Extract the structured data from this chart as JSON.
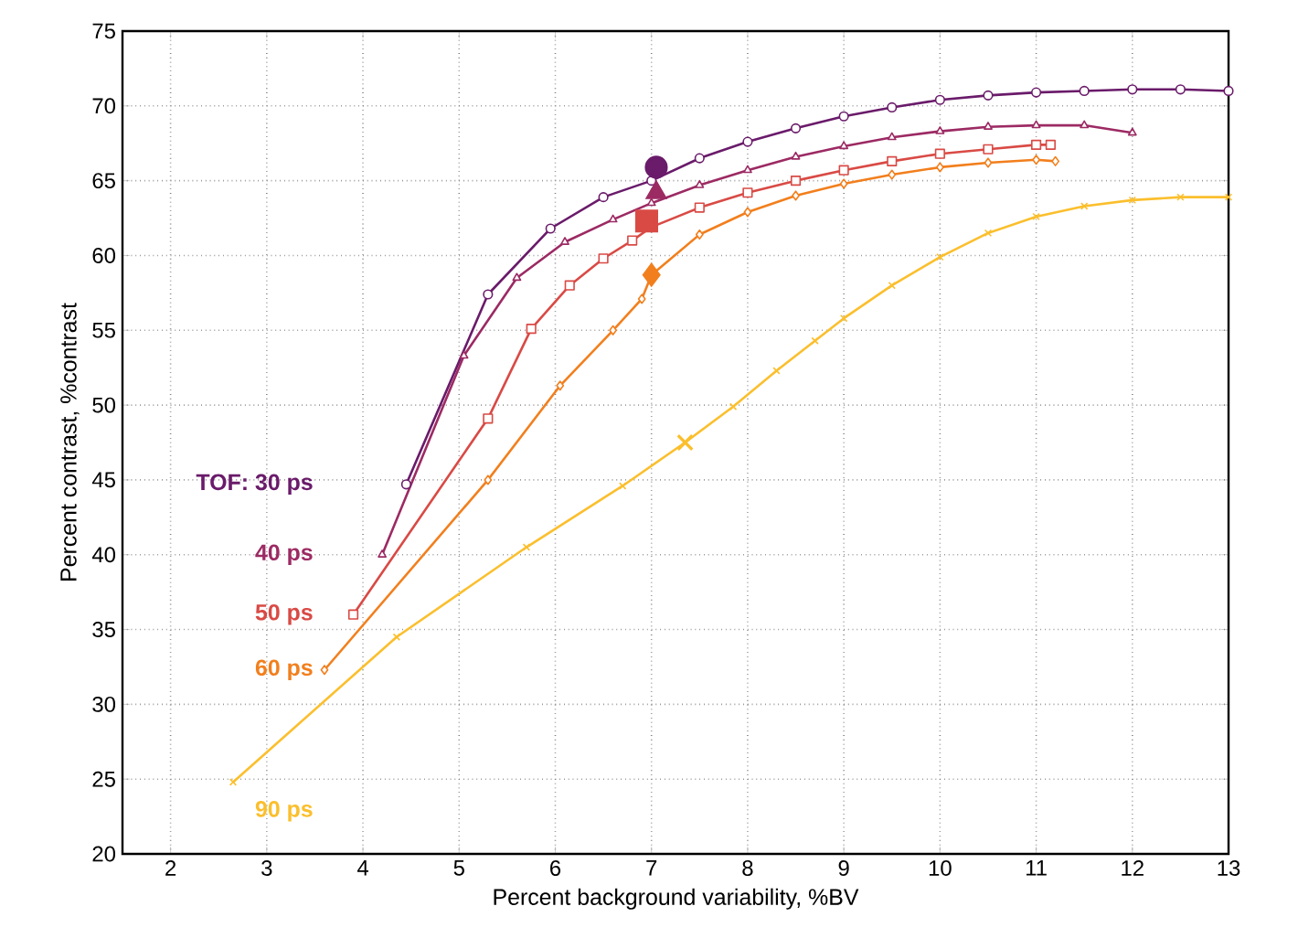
{
  "chart_data": {
    "type": "line",
    "xlabel": "Percent background variability, %BV",
    "ylabel": "Percent contrast, %contrast",
    "xlim": [
      1.5,
      13
    ],
    "xticks": [
      2,
      3,
      4,
      5,
      6,
      7,
      8,
      9,
      10,
      11,
      12,
      13
    ],
    "ylim": [
      20,
      75
    ],
    "yticks": [
      20,
      25,
      30,
      35,
      40,
      45,
      50,
      55,
      60,
      65,
      70,
      75
    ],
    "grid": true,
    "line_style": "solid",
    "series": [
      {
        "name": "TOF: 30 ps",
        "color": "#6a1b6a",
        "marker": "circle",
        "x": [
          4.45,
          5.3,
          5.95,
          6.5,
          7.0,
          7.5,
          8,
          8.5,
          9,
          9.5,
          10,
          10.5,
          11,
          11.5,
          12,
          12.5,
          13
        ],
        "values": [
          44.7,
          57.4,
          61.8,
          63.9,
          65.0,
          66.5,
          67.6,
          68.5,
          69.3,
          69.9,
          70.4,
          70.7,
          70.9,
          71.0,
          71.1,
          71.1,
          71.0
        ]
      },
      {
        "name": "40 ps",
        "color": "#9c2a63",
        "marker": "triangle",
        "x": [
          4.2,
          5.05,
          5.6,
          6.1,
          6.6,
          7.0,
          7.5,
          8,
          8.5,
          9,
          9.5,
          10,
          10.5,
          11,
          11.5,
          12
        ],
        "values": [
          40,
          53.3,
          58.5,
          60.9,
          62.4,
          63.5,
          64.7,
          65.7,
          66.6,
          67.3,
          67.9,
          68.3,
          68.6,
          68.7,
          68.7,
          68.2
        ]
      },
      {
        "name": "50 ps",
        "color": "#d94a45",
        "marker": "square",
        "x": [
          3.9,
          5.3,
          5.75,
          6.15,
          6.5,
          6.8,
          7.0,
          7.5,
          8,
          8.5,
          9,
          9.5,
          10,
          10.5,
          11,
          11.15
        ],
        "values": [
          36,
          49.1,
          55.1,
          58.0,
          59.8,
          61.0,
          61.9,
          63.2,
          64.2,
          65.0,
          65.7,
          66.3,
          66.8,
          67.1,
          67.4,
          67.4
        ]
      },
      {
        "name": "60 ps",
        "color": "#f27f1d",
        "marker": "diamond",
        "x": [
          3.6,
          5.3,
          6.05,
          6.6,
          6.9,
          7.0,
          7.5,
          8,
          8.5,
          9,
          9.5,
          10,
          10.5,
          11,
          11.2
        ],
        "values": [
          32.3,
          45,
          51.3,
          55,
          57.1,
          58.7,
          61.4,
          62.9,
          64.0,
          64.8,
          65.4,
          65.9,
          66.2,
          66.4,
          66.3
        ]
      },
      {
        "name": "90 ps",
        "color": "#fbbf2d",
        "marker": "cross",
        "x": [
          2.65,
          4.35,
          5.7,
          6.7,
          7.35,
          7.85,
          8.3,
          8.7,
          9,
          9.5,
          10,
          10.5,
          11,
          11.5,
          12,
          12.5,
          13
        ],
        "values": [
          24.8,
          34.5,
          40.5,
          44.6,
          47.5,
          49.9,
          52.3,
          54.3,
          55.8,
          58.0,
          59.9,
          61.5,
          62.6,
          63.3,
          63.7,
          63.9,
          63.9
        ]
      },
      {
        "type": "scatter",
        "color": "#6a1b6a",
        "marker": "circle",
        "x": [
          7.05
        ],
        "values": [
          65.9
        ]
      },
      {
        "type": "scatter",
        "color": "#9c2a63",
        "marker": "triangle",
        "x": [
          7.05
        ],
        "values": [
          64.2
        ]
      },
      {
        "type": "scatter",
        "color": "#d94a45",
        "marker": "square",
        "x": [
          6.95
        ],
        "values": [
          62.3
        ]
      },
      {
        "type": "scatter",
        "color": "#f27f1d",
        "marker": "diamond",
        "x": [
          7.0
        ],
        "values": [
          58.7
        ]
      },
      {
        "type": "scatter",
        "color": "#fbbf2d",
        "marker": "cross",
        "x": [
          7.35
        ],
        "values": [
          47.5
        ]
      }
    ]
  }
}
